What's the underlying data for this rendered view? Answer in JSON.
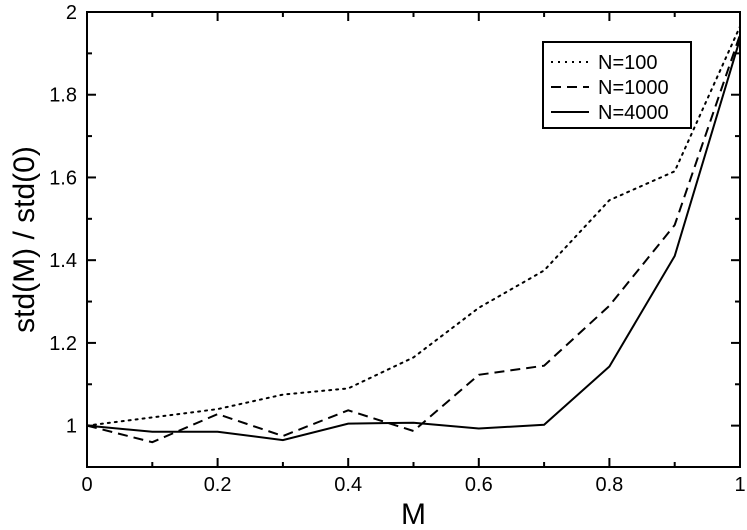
{
  "chart_data": {
    "type": "line",
    "xlabel": "M",
    "ylabel": "std(M) / std(0)",
    "xlim": [
      0,
      1
    ],
    "ylim": [
      0.9,
      2.0
    ],
    "x_ticks": [
      0,
      0.2,
      0.4,
      0.6,
      0.8,
      1
    ],
    "x_tick_labels": [
      "0",
      "0.2",
      "0.4",
      "0.6",
      "0.8",
      "1"
    ],
    "y_ticks": [
      1,
      1.2,
      1.4,
      1.6,
      1.8,
      2
    ],
    "y_tick_labels": [
      "1",
      "1.2",
      "1.4",
      "1.6",
      "1.8",
      "2"
    ],
    "grid": false,
    "legend_position": "top-right",
    "series": [
      {
        "name": "N=100",
        "style": "dotted",
        "x": [
          0,
          0.1,
          0.2,
          0.3,
          0.4,
          0.5,
          0.6,
          0.7,
          0.8,
          0.9,
          1.0
        ],
        "y": [
          1.0,
          1.02,
          1.04,
          1.075,
          1.09,
          1.165,
          1.285,
          1.375,
          1.545,
          1.615,
          1.965
        ]
      },
      {
        "name": "N=1000",
        "style": "dashed",
        "x": [
          0,
          0.1,
          0.2,
          0.3,
          0.4,
          0.5,
          0.6,
          0.7,
          0.8,
          0.9,
          1.0
        ],
        "y": [
          1.0,
          0.96,
          1.028,
          0.975,
          1.037,
          0.987,
          1.123,
          1.145,
          1.29,
          1.485,
          1.945
        ]
      },
      {
        "name": "N=4000",
        "style": "solid",
        "x": [
          0,
          0.1,
          0.2,
          0.3,
          0.4,
          0.5,
          0.6,
          0.7,
          0.8,
          0.9,
          1.0
        ],
        "y": [
          1.0,
          0.985,
          0.985,
          0.965,
          1.005,
          1.007,
          0.993,
          1.002,
          1.143,
          1.41,
          1.935
        ]
      }
    ]
  }
}
